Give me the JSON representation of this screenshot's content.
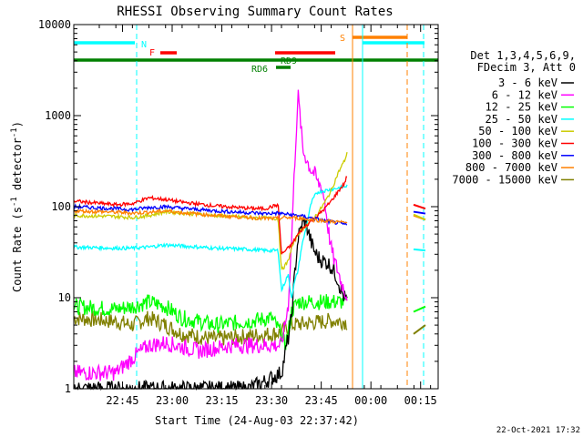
{
  "chart_data": {
    "type": "line",
    "title": "RHESSI Observing Summary Count Rates",
    "xlabel": "Start Time (24-Aug-03 22:37:42)",
    "ylabel_main": "Count Rate (s",
    "ylabel_sup1": "-1",
    "ylabel_mid": " detector",
    "ylabel_sup2": "-1",
    "ylabel_end": ")",
    "yscale": "log",
    "ylim": [
      1,
      10000
    ],
    "xlim_min": [
      -7.7,
      102.3
    ],
    "yticks": [
      {
        "v": 1,
        "label": "1"
      },
      {
        "v": 10,
        "label": "10"
      },
      {
        "v": 100,
        "label": "100"
      },
      {
        "v": 1000,
        "label": "1000"
      },
      {
        "v": 10000,
        "label": "10000"
      }
    ],
    "xticks": [
      {
        "m": 7,
        "label": "22:45"
      },
      {
        "m": 22,
        "label": "23:00"
      },
      {
        "m": 37,
        "label": "23:15"
      },
      {
        "m": 52,
        "label": "23:30"
      },
      {
        "m": 67,
        "label": "23:45"
      },
      {
        "m": 82,
        "label": "00:00"
      },
      {
        "m": 97,
        "label": "00:15"
      }
    ],
    "date_stamp": "22-Oct-2021 17:32",
    "legend": {
      "header": [
        "Det 1,3,4,5,6,9,",
        "FDecim 3, Att 0"
      ],
      "position": "right"
    },
    "series": [
      {
        "name": "3 - 6 keV",
        "color": "#000000",
        "points": [
          [
            -7.7,
            1
          ],
          [
            7,
            1
          ],
          [
            20,
            1
          ],
          [
            32,
            1
          ],
          [
            45,
            1
          ],
          [
            50,
            1.2
          ],
          [
            55,
            1.5
          ],
          [
            57,
            3.5
          ],
          [
            58,
            6
          ],
          [
            59,
            18
          ],
          [
            60,
            45
          ],
          [
            61,
            60
          ],
          [
            62,
            70
          ],
          [
            63,
            55
          ],
          [
            64,
            40
          ],
          [
            65,
            32
          ],
          [
            66,
            28
          ],
          [
            67,
            26
          ],
          [
            68,
            25
          ],
          [
            69,
            24
          ],
          [
            70,
            22
          ],
          [
            71,
            19
          ],
          [
            72,
            16
          ],
          [
            73,
            12
          ],
          [
            74,
            10
          ],
          [
            75,
            9
          ]
        ]
      },
      {
        "name": "6 - 12 keV",
        "color": "#ff00ff",
        "points": [
          [
            -7.7,
            1.5
          ],
          [
            0,
            1.5
          ],
          [
            5,
            1.5
          ],
          [
            12,
            2.5
          ],
          [
            15,
            3
          ],
          [
            20,
            3.2
          ],
          [
            30,
            2.6
          ],
          [
            40,
            3
          ],
          [
            50,
            3
          ],
          [
            55,
            3
          ],
          [
            57,
            8
          ],
          [
            58,
            40
          ],
          [
            59,
            300
          ],
          [
            60,
            1700
          ],
          [
            60.7,
            900
          ],
          [
            61.5,
            400
          ],
          [
            62,
            380
          ],
          [
            63,
            300
          ],
          [
            64,
            250
          ],
          [
            65,
            230
          ],
          [
            66,
            180
          ],
          [
            67,
            170
          ],
          [
            68,
            120
          ],
          [
            69,
            60
          ],
          [
            70,
            35
          ],
          [
            71,
            25
          ],
          [
            72,
            20
          ],
          [
            73,
            15
          ],
          [
            74,
            12
          ],
          [
            75,
            10
          ]
        ]
      },
      {
        "name": "12 - 25 keV",
        "color": "#00ff00",
        "points": [
          [
            -7.7,
            8
          ],
          [
            5,
            7.5
          ],
          [
            10,
            8
          ],
          [
            15,
            9
          ],
          [
            20,
            8
          ],
          [
            25,
            6
          ],
          [
            35,
            5
          ],
          [
            45,
            5.5
          ],
          [
            52,
            6
          ],
          [
            55,
            4
          ],
          [
            56,
            3
          ],
          [
            57,
            4
          ],
          [
            58,
            7
          ],
          [
            59,
            8
          ],
          [
            60,
            9
          ],
          [
            62,
            9
          ],
          [
            64,
            9
          ],
          [
            66,
            9
          ],
          [
            68,
            9
          ],
          [
            70,
            9
          ],
          [
            72,
            9
          ],
          [
            74,
            9
          ],
          [
            75,
            8.5
          ]
        ]
      },
      {
        "name": "25 - 50 keV",
        "color": "#00ffff",
        "points": [
          [
            -7.7,
            36
          ],
          [
            5,
            35
          ],
          [
            10,
            35
          ],
          [
            15,
            36
          ],
          [
            20,
            38
          ],
          [
            25,
            37
          ],
          [
            35,
            35
          ],
          [
            45,
            34
          ],
          [
            50,
            33
          ],
          [
            54,
            33
          ],
          [
            55,
            12
          ],
          [
            57,
            18
          ],
          [
            58,
            10
          ],
          [
            59,
            15
          ],
          [
            60,
            20
          ],
          [
            61,
            35
          ],
          [
            62,
            50
          ],
          [
            63,
            75
          ],
          [
            64,
            110
          ],
          [
            65,
            130
          ],
          [
            66,
            145
          ],
          [
            68,
            150
          ],
          [
            70,
            155
          ],
          [
            72,
            160
          ],
          [
            74,
            165
          ],
          [
            75,
            170
          ]
        ]
      },
      {
        "name": "50 - 100 keV",
        "color": "#cccc00",
        "points": [
          [
            -7.7,
            80
          ],
          [
            5,
            78
          ],
          [
            10,
            76
          ],
          [
            15,
            80
          ],
          [
            20,
            88
          ],
          [
            25,
            85
          ],
          [
            35,
            80
          ],
          [
            45,
            76
          ],
          [
            50,
            75
          ],
          [
            54,
            74
          ],
          [
            55,
            20
          ],
          [
            57,
            25
          ],
          [
            58,
            35
          ],
          [
            60,
            50
          ],
          [
            62,
            60
          ],
          [
            64,
            70
          ],
          [
            66,
            85
          ],
          [
            68,
            110
          ],
          [
            70,
            150
          ],
          [
            72,
            230
          ],
          [
            74,
            320
          ],
          [
            75,
            400
          ]
        ]
      },
      {
        "name": "100 - 300 keV",
        "color": "#ff0000",
        "points": [
          [
            -7.7,
            115
          ],
          [
            5,
            105
          ],
          [
            10,
            108
          ],
          [
            15,
            125
          ],
          [
            20,
            120
          ],
          [
            25,
            112
          ],
          [
            35,
            102
          ],
          [
            45,
            96
          ],
          [
            50,
            95
          ],
          [
            54,
            105
          ],
          [
            55,
            30
          ],
          [
            57,
            35
          ],
          [
            58,
            38
          ],
          [
            60,
            50
          ],
          [
            62,
            60
          ],
          [
            64,
            70
          ],
          [
            66,
            80
          ],
          [
            68,
            95
          ],
          [
            70,
            115
          ],
          [
            72,
            145
          ],
          [
            74,
            180
          ],
          [
            75,
            230
          ]
        ]
      },
      {
        "name": "300 - 800 keV",
        "color": "#0000ff",
        "points": [
          [
            -7.7,
            100
          ],
          [
            5,
            95
          ],
          [
            10,
            93
          ],
          [
            15,
            98
          ],
          [
            20,
            100
          ],
          [
            25,
            96
          ],
          [
            35,
            90
          ],
          [
            45,
            86
          ],
          [
            50,
            84
          ],
          [
            54,
            85
          ],
          [
            56,
            83
          ],
          [
            60,
            80
          ],
          [
            64,
            75
          ],
          [
            68,
            70
          ],
          [
            72,
            66
          ],
          [
            75,
            63
          ]
        ]
      },
      {
        "name": "800 - 7000 keV",
        "color": "#ff8000",
        "points": [
          [
            -7.7,
            90
          ],
          [
            5,
            87
          ],
          [
            10,
            85
          ],
          [
            15,
            87
          ],
          [
            20,
            90
          ],
          [
            25,
            86
          ],
          [
            35,
            80
          ],
          [
            45,
            76
          ],
          [
            50,
            74
          ],
          [
            54,
            74
          ],
          [
            56,
            76
          ],
          [
            60,
            75
          ],
          [
            64,
            72
          ],
          [
            68,
            70
          ],
          [
            72,
            68
          ],
          [
            75,
            66
          ]
        ]
      },
      {
        "name": "7000 - 15000 keV",
        "color": "#808000",
        "points": [
          [
            -7.7,
            6
          ],
          [
            5,
            5.5
          ],
          [
            10,
            5
          ],
          [
            15,
            6
          ],
          [
            20,
            5
          ],
          [
            25,
            4
          ],
          [
            35,
            3.5
          ],
          [
            45,
            3.8
          ],
          [
            52,
            4
          ],
          [
            55,
            4.2
          ],
          [
            58,
            5
          ],
          [
            62,
            5.2
          ],
          [
            66,
            5.4
          ],
          [
            70,
            5.6
          ],
          [
            74,
            5.5
          ],
          [
            75,
            5.2
          ]
        ]
      }
    ],
    "tail_series_values": [
      {
        "color": "#ff0000",
        "start": 105,
        "end": 95
      },
      {
        "color": "#0000ff",
        "start": 88,
        "end": 84
      },
      {
        "color": "#ff8000",
        "start": 80,
        "end": 72
      },
      {
        "color": "#cccc00",
        "start": 82,
        "end": 72
      },
      {
        "color": "#00ffff",
        "start": 34,
        "end": 33
      },
      {
        "color": "#00ff00",
        "start": 7,
        "end": 8
      },
      {
        "color": "#808000",
        "start": 4,
        "end": 5
      }
    ],
    "annotations": {
      "flags": [
        {
          "label": "N",
          "color": "#00ffff"
        },
        {
          "label": "F",
          "color": "#ff0000"
        },
        {
          "label": "S",
          "color": "#ff8000"
        },
        {
          "label": "RD9",
          "color": "#008000"
        },
        {
          "label": "RD6",
          "color": "#008000"
        }
      ]
    }
  }
}
